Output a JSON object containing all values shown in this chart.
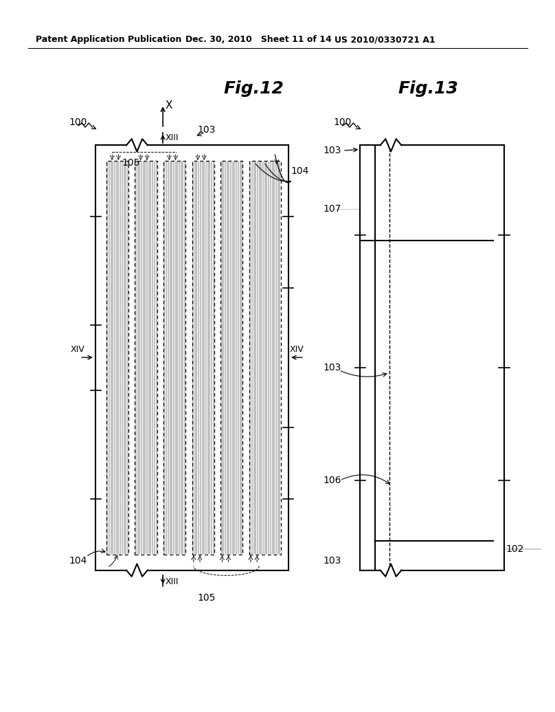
{
  "bg_color": "#ffffff",
  "header_left": "Patent Application Publication",
  "header_center": "Dec. 30, 2010   Sheet 11 of 14",
  "header_right": "US 2010/0330721 A1"
}
